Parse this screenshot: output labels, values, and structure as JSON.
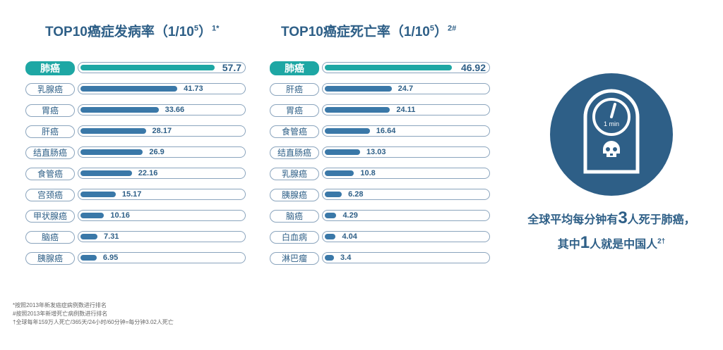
{
  "chart_data": [
    {
      "type": "bar",
      "title": "TOP10癌症发病率（1/10",
      "title_sup_exp": "5",
      "title_close": "）",
      "title_note": "1*",
      "categories": [
        "肺癌",
        "乳腺癌",
        "胃癌",
        "肝癌",
        "结直肠癌",
        "食管癌",
        "宫颈癌",
        "甲状腺癌",
        "脑癌",
        "胰腺癌"
      ],
      "values": [
        57.7,
        41.73,
        33.66,
        28.17,
        26.9,
        22.16,
        15.17,
        10.16,
        7.31,
        6.95
      ],
      "value_labels": [
        "57.7",
        "41.73",
        "33.66",
        "28.17",
        "26.9",
        "22.16",
        "15.17",
        "10.16",
        "7.31",
        "6.95"
      ],
      "xlim": [
        0,
        70
      ],
      "highlight_color": "#1ea7a4",
      "bar_color": "#3a78a8"
    },
    {
      "type": "bar",
      "title": "TOP10癌症死亡率（1/10",
      "title_sup_exp": "5",
      "title_close": "）",
      "title_note": "2#",
      "categories": [
        "肺癌",
        "肝癌",
        "胃癌",
        "食管癌",
        "结直肠癌",
        "乳腺癌",
        "胰腺癌",
        "脑癌",
        "白血病",
        "淋巴瘤"
      ],
      "values": [
        46.92,
        24.7,
        24.11,
        16.64,
        13.03,
        10.8,
        6.28,
        4.29,
        4.04,
        3.4
      ],
      "value_labels": [
        "46.92",
        "24.7",
        "24.11",
        "16.64",
        "13.03",
        "10.8",
        "6.28",
        "4.29",
        "4.04",
        "3.4"
      ],
      "xlim": [
        0,
        60
      ],
      "highlight_color": "#1ea7a4",
      "bar_color": "#3a78a8"
    }
  ],
  "clock": {
    "label": "1 min",
    "icon": "clock-skull-icon",
    "circle_color": "#2e5f87"
  },
  "slogan": {
    "line1_pre": "全球平均每分钟有",
    "line1_num": "3",
    "line1_post": "人死于肺癌，",
    "line2_pre": "其中",
    "line2_num": "1",
    "line2_post": "人就是中国人",
    "line2_note": "2†"
  },
  "footnotes": [
    "*按照2013年新发癌症病例数进行排名",
    "#按照2013年新增死亡病例数进行排名",
    "†全球每年159万人死亡/365天/24小时/60分钟=每分钟3.02人死亡"
  ]
}
